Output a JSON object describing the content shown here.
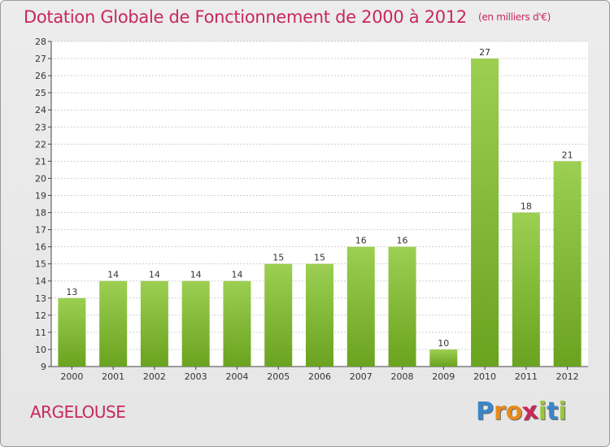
{
  "chart_data": {
    "type": "bar",
    "title": "Dotation Globale de Fonctionnement de 2000 à 2012",
    "subtitle": "(en milliers d'€)",
    "categories": [
      "2000",
      "2001",
      "2002",
      "2003",
      "2004",
      "2005",
      "2006",
      "2007",
      "2008",
      "2009",
      "2010",
      "2011",
      "2012"
    ],
    "values": [
      13,
      14,
      14,
      14,
      14,
      15,
      15,
      16,
      16,
      10,
      27,
      18,
      21
    ],
    "ylim": [
      9,
      28
    ],
    "yticks": [
      "9",
      "10",
      "11",
      "12",
      "13",
      "14",
      "15",
      "16",
      "17",
      "18",
      "19",
      "20",
      "21",
      "22",
      "23",
      "24",
      "25",
      "26",
      "27",
      "28"
    ],
    "grid": true,
    "bar_color_top": "#9ccf52",
    "bar_color_bottom": "#6aa31f"
  },
  "place_name": "ARGELOUSE",
  "logo": {
    "letters": [
      "P",
      "r",
      "o",
      "x",
      "i",
      "t",
      "i"
    ],
    "colors": [
      "#3a86c8",
      "#e88a1a",
      "#e88a1a",
      "#c8285a",
      "#9bc53d",
      "#3a86c8",
      "#9bc53d"
    ]
  },
  "colors": {
    "title": "#c8285a",
    "grid": "#cfcfcf",
    "axis": "#444444"
  }
}
